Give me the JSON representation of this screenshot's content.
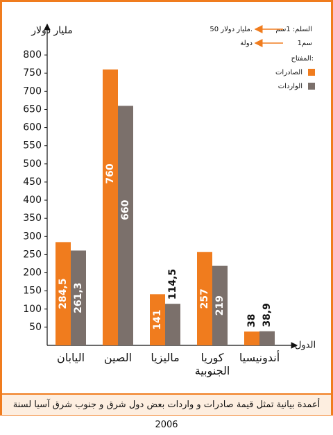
{
  "chart_data": {
    "type": "bar",
    "y_label": "مليار دولار",
    "x_label": "الدول",
    "scale_label": "السلم: 1سم",
    "scale_value": "50 مليار دولار.",
    "scale_label2": "1سم",
    "scale_value2": "دولة",
    "legend_title": "المفتاح:",
    "caption": "أعمدة بيانية تمثل قيمة صادرات و واردات بعض دول شرق و جنوب شرق آسيا لسنة 2006",
    "categories": [
      "اليابان",
      "الصين",
      "ماليزيا",
      "كوريا الجنوبية",
      "أندونيسيا"
    ],
    "series": [
      {
        "name": "الصادرات",
        "color": "#f07c1e",
        "values": [
          284.5,
          760,
          141,
          257,
          38
        ],
        "value_labels": [
          "284,5",
          "760",
          "141",
          "257",
          "38"
        ]
      },
      {
        "name": "الواردات",
        "color": "#7b706b",
        "values": [
          261.3,
          660,
          114.5,
          219,
          38.9
        ],
        "value_labels": [
          "261,3",
          "660",
          "114,5",
          "219",
          "38,9"
        ]
      }
    ],
    "ylim": [
      0,
      850
    ],
    "yticks": [
      50,
      100,
      150,
      200,
      250,
      300,
      350,
      400,
      450,
      500,
      550,
      600,
      650,
      700,
      750,
      800
    ],
    "grid": false
  }
}
